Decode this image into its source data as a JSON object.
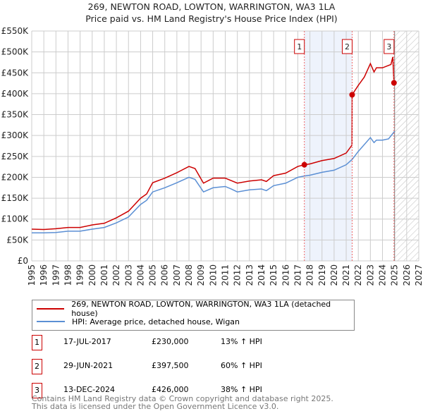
{
  "chart_data": {
    "type": "line",
    "title": "269, NEWTON ROAD, LOWTON, WARRINGTON, WA3 1LA",
    "subtitle": "Price paid vs. HM Land Registry's House Price Index (HPI)",
    "xlim": [
      1995,
      2027
    ],
    "ylim": [
      0,
      550000
    ],
    "x_ticks": [
      "1995",
      "1996",
      "1997",
      "1998",
      "1999",
      "2000",
      "2001",
      "2002",
      "2003",
      "2004",
      "2005",
      "2006",
      "2007",
      "2008",
      "2009",
      "2010",
      "2011",
      "2012",
      "2013",
      "2014",
      "2015",
      "2016",
      "2017",
      "2018",
      "2019",
      "2020",
      "2021",
      "2022",
      "2023",
      "2024",
      "2025",
      "2026",
      "2027"
    ],
    "y_ticks": [
      {
        "v": 0,
        "l": "£0"
      },
      {
        "v": 50000,
        "l": "£50K"
      },
      {
        "v": 100000,
        "l": "£100K"
      },
      {
        "v": 150000,
        "l": "£150K"
      },
      {
        "v": 200000,
        "l": "£200K"
      },
      {
        "v": 250000,
        "l": "£250K"
      },
      {
        "v": 300000,
        "l": "£300K"
      },
      {
        "v": 350000,
        "l": "£350K"
      },
      {
        "v": 400000,
        "l": "£400K"
      },
      {
        "v": 450000,
        "l": "£450K"
      },
      {
        "v": 500000,
        "l": "£500K"
      },
      {
        "v": 550000,
        "l": "£550K"
      }
    ],
    "grid": true,
    "series": [
      {
        "name": "269, NEWTON ROAD, LOWTON, WARRINGTON, WA3 1LA (detached house)",
        "color": "#cc0000",
        "x": [
          1995,
          1996,
          1997,
          1998,
          1999,
          2000,
          2001,
          2002,
          2003,
          2004,
          2004.5,
          2005,
          2006,
          2007,
          2008,
          2008.5,
          2009.2,
          2010,
          2011,
          2011.5,
          2012,
          2013,
          2014,
          2014.4,
          2015,
          2016,
          2017,
          2017.54,
          2018,
          2019,
          2020,
          2021,
          2021.48,
          2021.49,
          2022,
          2022.5,
          2023,
          2023.3,
          2023.5,
          2024,
          2024.7,
          2024.85,
          2024.95
        ],
        "y": [
          76000,
          75000,
          77000,
          80000,
          80000,
          86000,
          90000,
          103000,
          119000,
          150000,
          160000,
          187000,
          198000,
          211000,
          226000,
          221000,
          186000,
          198000,
          198000,
          192000,
          186000,
          191000,
          194000,
          190000,
          204000,
          210000,
          226000,
          230000,
          232000,
          240000,
          245000,
          258000,
          277000,
          397500,
          420000,
          440000,
          472000,
          452000,
          462000,
          462000,
          470000,
          488000,
          426000
        ]
      },
      {
        "name": "HPI: Average price, detached house, Wigan",
        "color": "#5b8fd4",
        "x": [
          1995,
          1996,
          1997,
          1998,
          1999,
          2000,
          2001,
          2002,
          2003,
          2004,
          2004.5,
          2005,
          2006,
          2007,
          2008,
          2008.5,
          2009.2,
          2010,
          2011,
          2011.5,
          2012,
          2013,
          2014,
          2014.4,
          2015,
          2016,
          2017,
          2017.54,
          2018,
          2019,
          2020,
          2021,
          2021.5,
          2022,
          2023,
          2023.3,
          2023.5,
          2024,
          2024.5,
          2025
        ],
        "y": [
          67000,
          67000,
          68000,
          71000,
          71000,
          76000,
          80000,
          91000,
          105000,
          135000,
          145000,
          165000,
          175000,
          187000,
          200000,
          195000,
          165000,
          175000,
          178000,
          172000,
          165000,
          170000,
          172000,
          168000,
          180000,
          186000,
          200000,
          203000,
          205000,
          212000,
          217000,
          230000,
          243000,
          262000,
          295000,
          283000,
          289000,
          289000,
          292000,
          310000
        ]
      }
    ],
    "sales": [
      {
        "n": "1",
        "x": 2017.54,
        "y": 230000,
        "date": "17-JUL-2017",
        "price": "£230,000",
        "hpi": "13% ↑ HPI"
      },
      {
        "n": "2",
        "x": 2021.49,
        "y": 397500,
        "date": "29-JUN-2021",
        "price": "£397,500",
        "hpi": "60% ↑ HPI"
      },
      {
        "n": "3",
        "x": 2024.95,
        "y": 426000,
        "date": "13-DEC-2024",
        "price": "£426,000",
        "hpi": "38% ↑ HPI"
      }
    ],
    "forecast_start": 2025.0
  },
  "footer": {
    "line1": "Contains HM Land Registry data © Crown copyright and database right 2025.",
    "line2": "This data is licensed under the Open Government Licence v3.0."
  }
}
